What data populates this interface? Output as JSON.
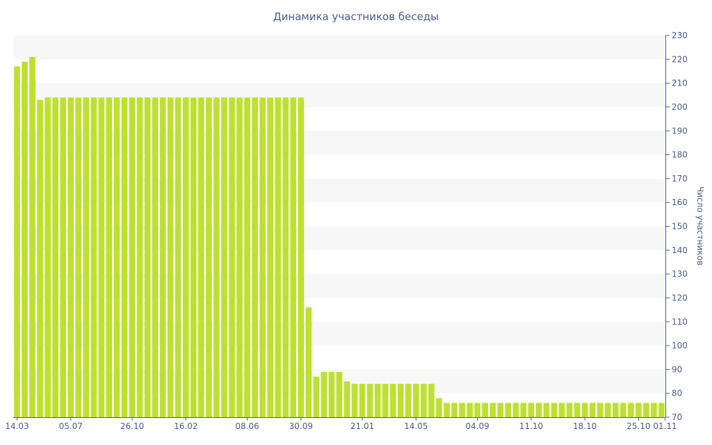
{
  "chart_data": {
    "type": "bar",
    "title": "Динамика участников беседы",
    "xlabel": "",
    "ylabel": "Число участников",
    "ylim": [
      70,
      230
    ],
    "yticks": [
      70,
      80,
      90,
      100,
      110,
      120,
      130,
      140,
      150,
      160,
      170,
      180,
      190,
      200,
      210,
      220,
      230
    ],
    "xtick_labels": [
      {
        "label": "14.03",
        "index": 0
      },
      {
        "label": "05.07",
        "index": 7
      },
      {
        "label": "26.10",
        "index": 15
      },
      {
        "label": "16.02",
        "index": 22
      },
      {
        "label": "08.06",
        "index": 30
      },
      {
        "label": "30.09",
        "index": 37
      },
      {
        "label": "21.01",
        "index": 45
      },
      {
        "label": "14.05",
        "index": 52
      },
      {
        "label": "04.09",
        "index": 60
      },
      {
        "label": "11.10",
        "index": 67
      },
      {
        "label": "18.10",
        "index": 74
      },
      {
        "label": "25.10",
        "index": 81
      },
      {
        "label": "01.11",
        "index": 84
      }
    ],
    "values": [
      217,
      219,
      221,
      203,
      204,
      204,
      204,
      204,
      204,
      204,
      204,
      204,
      204,
      204,
      204,
      204,
      204,
      204,
      204,
      204,
      204,
      204,
      204,
      204,
      204,
      204,
      204,
      204,
      204,
      204,
      204,
      204,
      204,
      204,
      204,
      204,
      204,
      204,
      116,
      87,
      89,
      89,
      89,
      85,
      84,
      84,
      84,
      84,
      84,
      84,
      84,
      84,
      84,
      84,
      84,
      78,
      76,
      76,
      76,
      76,
      76,
      76,
      76,
      76,
      76,
      76,
      76,
      76,
      76,
      76,
      76,
      76,
      76,
      76,
      76,
      76,
      76,
      76,
      76,
      76,
      76,
      76,
      76,
      76,
      76
    ],
    "grid": "horizontal alternating bands",
    "y_axis_position": "right",
    "colors": {
      "bar": "#bde031",
      "band": "#f7f7f7",
      "text": "#4a5a8c",
      "axis": "#4a5a8c"
    }
  }
}
